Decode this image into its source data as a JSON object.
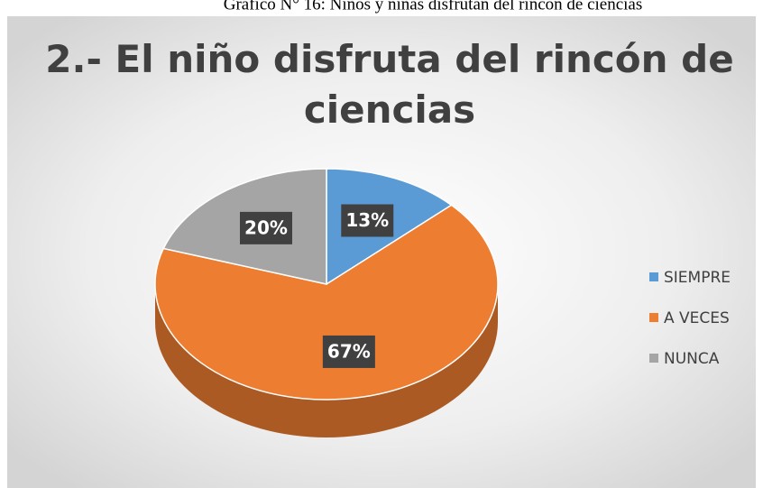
{
  "caption": "Gráfico N° 16: Niños y niñas disfrutan del rincón de ciencias",
  "chart_data": {
    "type": "pie",
    "title": "2.- El niño disfruta del rincón de ciencias",
    "categories": [
      "SIEMPRE",
      "A VECES",
      "NUNCA"
    ],
    "values": [
      13,
      67,
      20
    ],
    "value_labels": [
      "13%",
      "67%",
      "20%"
    ],
    "colors": [
      "#5b9bd5",
      "#ed7d31",
      "#a5a5a5"
    ],
    "legend": "right"
  }
}
